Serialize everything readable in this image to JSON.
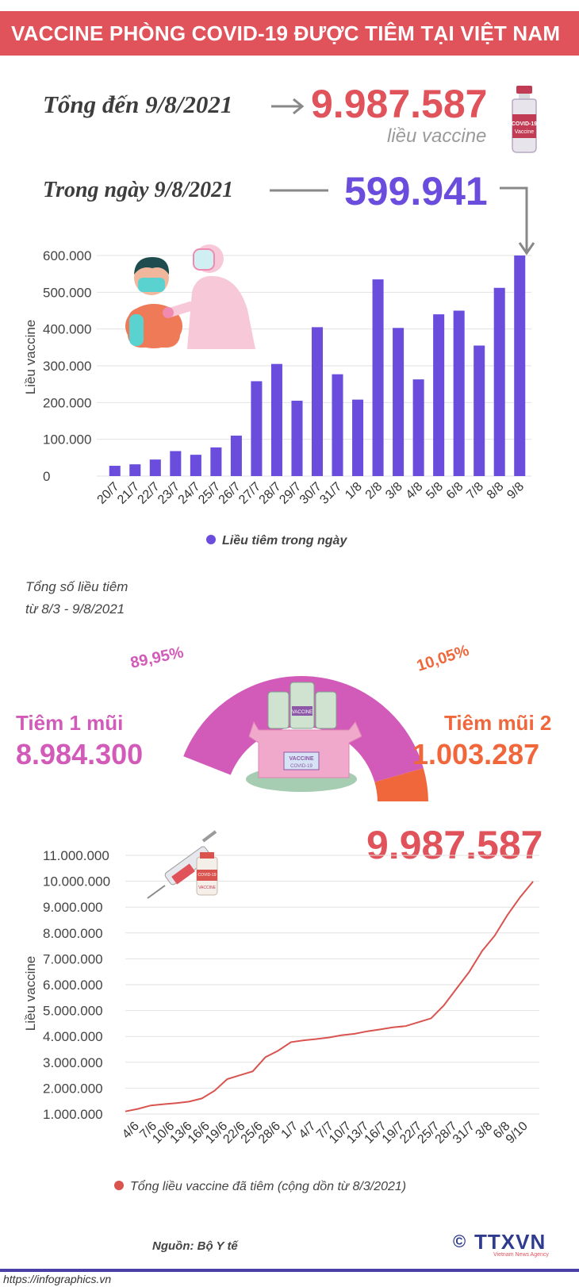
{
  "header": {
    "title": "VACCINE PHÒNG COVID-19 ĐƯỢC TIÊM TẠI VIỆT NAM"
  },
  "summary": {
    "total_label": "Tổng đến 9/8/2021",
    "total_value": "9.987.587",
    "total_unit": "liều vaccine",
    "daily_label": "Trong ngày 9/8/2021",
    "daily_value": "599.941",
    "vial_label": "COVID-19",
    "vial_sublabel": "Vaccine"
  },
  "chart_data": [
    {
      "type": "bar",
      "ylabel": "Liều vaccine",
      "ylim": [
        0,
        600000
      ],
      "yticks": [
        "0",
        "100.000",
        "200.000",
        "300.000",
        "400.000",
        "500.000",
        "600.000"
      ],
      "categories": [
        "20/7",
        "21/7",
        "22/7",
        "23/7",
        "24/7",
        "25/7",
        "26/7",
        "27/7",
        "28/7",
        "29/7",
        "30/7",
        "31/7",
        "1/8",
        "2/8",
        "3/8",
        "4/8",
        "5/8",
        "6/8",
        "7/8",
        "8/8",
        "9/8"
      ],
      "series": [
        {
          "name": "Liều tiêm trong ngày",
          "values": [
            28000,
            32000,
            45000,
            68000,
            58000,
            78000,
            110000,
            258000,
            305000,
            205000,
            405000,
            277000,
            208000,
            535000,
            403000,
            263000,
            440000,
            450000,
            355000,
            512000,
            599941
          ],
          "color": "#6a4ddd"
        }
      ],
      "legend": "bottom-center"
    },
    {
      "type": "pie",
      "title": "Tổng số liều tiêm",
      "subtitle": "từ 8/3 - 9/8/2021",
      "slices": [
        {
          "name": "Tiêm 1 mũi",
          "value": 8984300,
          "value_label": "8.984.300",
          "percent_label": "89,95%",
          "color": "#d25ab8"
        },
        {
          "name": "Tiêm mũi 2",
          "value": 1003287,
          "value_label": "1.003.287",
          "percent_label": "10,05%",
          "color": "#f0673b"
        }
      ],
      "box_label": "VACCINE",
      "box_sublabel": "COVID-19",
      "vial_label": "VACCINE"
    },
    {
      "type": "line",
      "ylabel": "Liều vaccine",
      "ylim": [
        1000000,
        11000000
      ],
      "yticks": [
        "1.000.000",
        "2.000.000",
        "3.000.000",
        "4.000.000",
        "5.000.000",
        "6.000.000",
        "7.000.000",
        "8.000.000",
        "9.000.000",
        "10.000.000",
        "11.000.000"
      ],
      "xticks": [
        "4/6",
        "7/6",
        "10/6",
        "13/6",
        "16/6",
        "19/6",
        "22/6",
        "25/6",
        "28/6",
        "1/7",
        "4/7",
        "7/7",
        "10/7",
        "13/7",
        "16/7",
        "19/7",
        "22/7",
        "25/7",
        "28/7",
        "31/7",
        "3/8",
        "6/8",
        "9/10"
      ],
      "series": [
        {
          "name": "Tổng liều vaccine đã tiêm (cộng dồn từ 8/3/2021)",
          "color": "#d9534f",
          "values": [
            1100000,
            1200000,
            1330000,
            1380000,
            1420000,
            1480000,
            1600000,
            1900000,
            2350000,
            2500000,
            2650000,
            3200000,
            3450000,
            3780000,
            3850000,
            3900000,
            3960000,
            4050000,
            4100000,
            4200000,
            4270000,
            4350000,
            4400000,
            4550000,
            4700000,
            5200000,
            5850000,
            6500000,
            7300000,
            7900000,
            8700000,
            9388000,
            9987587
          ]
        }
      ],
      "highlight_value": "9.987.587",
      "vial_label": "COVID-19",
      "vial_sublabel": "VACCINE"
    }
  ],
  "footer": {
    "source": "Nguồn: Bộ Y tế",
    "url": "https://infographics.vn",
    "brand": "TTXVN",
    "brand_sub": "Vietnam News Agency",
    "copyright": "©"
  }
}
